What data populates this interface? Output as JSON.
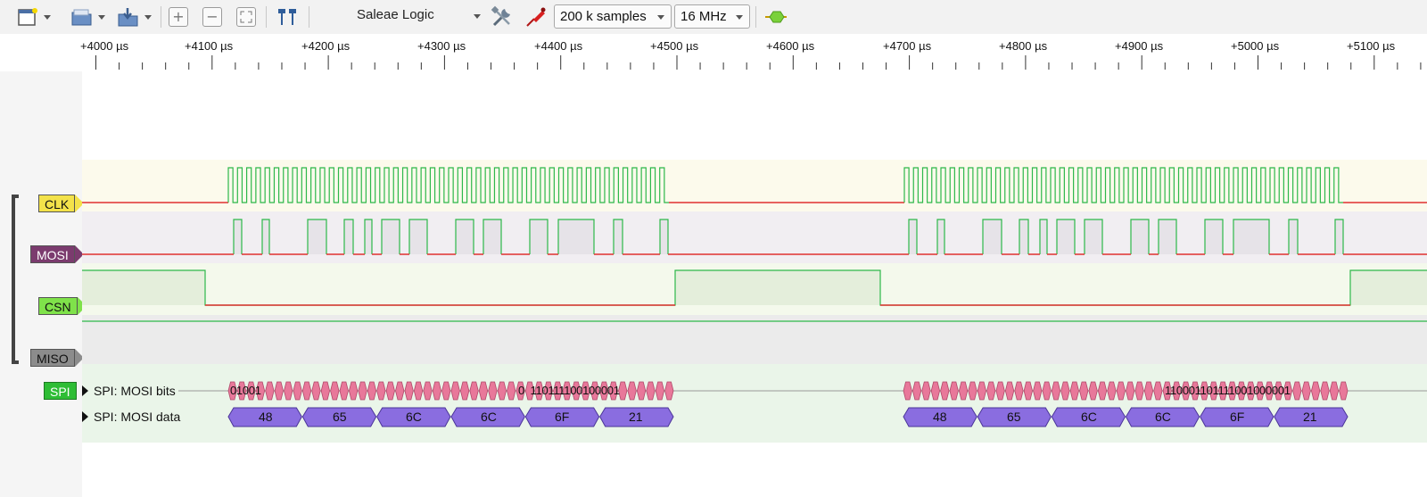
{
  "toolbar": {
    "buttons": [
      {
        "name": "new-session-icon"
      },
      {
        "name": "open-file-icon"
      },
      {
        "name": "save-export-icon"
      },
      {
        "name": "zoom-in-icon",
        "glyph": "+"
      },
      {
        "name": "zoom-out-icon",
        "glyph": "−"
      },
      {
        "name": "zoom-fit-icon"
      },
      {
        "name": "timing-markers-icon"
      },
      {
        "name": "settings-tools-icon"
      },
      {
        "name": "probe-icon"
      },
      {
        "name": "start-capture-icon"
      }
    ],
    "device": "Saleae Logic",
    "samples": "200 k samples",
    "rate": "16 MHz"
  },
  "ruler": {
    "labels": [
      "+4000 µs",
      "+4100 µs",
      "+4200 µs",
      "+4300 µs",
      "+4400 µs",
      "+4500 µs",
      "+4600 µs",
      "+4700 µs",
      "+4800 µs",
      "+4900 µs",
      "+5000 µs",
      "+5100 µs"
    ]
  },
  "channels": {
    "clk": "CLK",
    "mosi": "MOSI",
    "csn": "CSN",
    "miso": "MISO",
    "spi": "SPI"
  },
  "analyzers": {
    "bits_label": "SPI: MOSI bits",
    "data_label": "SPI: MOSI data",
    "bits_text_1": "01001",
    "bits_text_2": "0  110111100100001",
    "bits_text_3": "110001101111001000001",
    "bytes": [
      "48",
      "65",
      "6C",
      "6C",
      "6F",
      "21"
    ]
  },
  "colors": {
    "clk_green": "#2db84a",
    "low_red": "#e03030",
    "bits_fill": "#e8789a",
    "bytes_fill": "#8a6de0"
  }
}
